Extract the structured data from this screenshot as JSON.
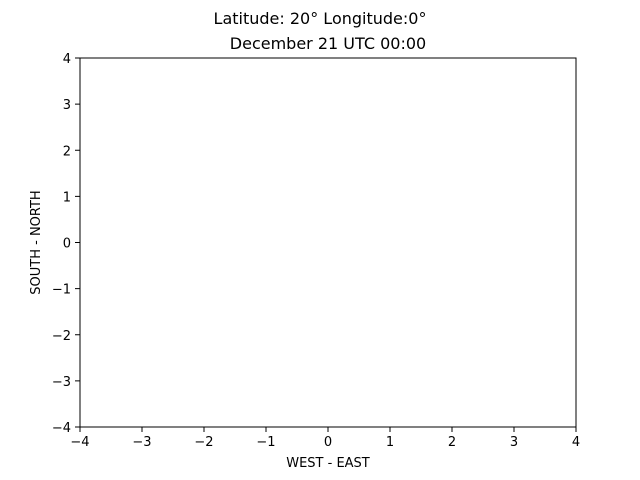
{
  "chart_data": {
    "type": "scatter",
    "title": "Latitude: 20° Longitude:0°",
    "subtitle": "December 21 UTC 00:00",
    "xlabel": "WEST - EAST",
    "ylabel": "SOUTH - NORTH",
    "xlim": [
      -4,
      4
    ],
    "ylim": [
      -4,
      4
    ],
    "x_ticks": [
      -4,
      -3,
      -2,
      -1,
      0,
      1,
      2,
      3,
      4
    ],
    "y_ticks": [
      -4,
      -3,
      -2,
      -1,
      0,
      1,
      2,
      3,
      4
    ],
    "x_tick_labels": [
      "−4",
      "−3",
      "−2",
      "−1",
      "0",
      "1",
      "2",
      "3",
      "4"
    ],
    "y_tick_labels": [
      "−4",
      "−3",
      "−2",
      "−1",
      "0",
      "1",
      "2",
      "3",
      "4"
    ],
    "grid": false,
    "series": []
  },
  "colors": {
    "axes": "#000000",
    "background": "#ffffff"
  }
}
